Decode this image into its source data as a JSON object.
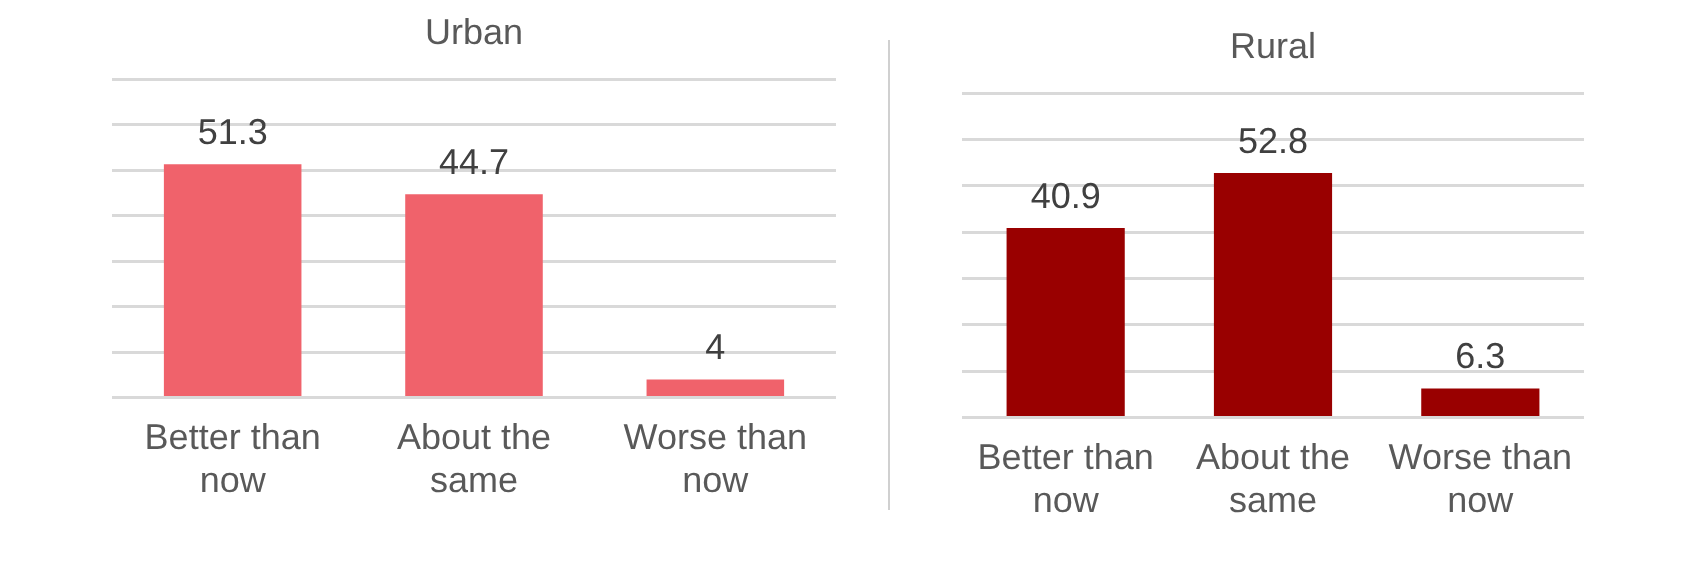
{
  "chart_data": [
    {
      "type": "bar",
      "title": "Urban",
      "categories": [
        "Better than now",
        "About the same",
        "Worse than now"
      ],
      "values": [
        51.3,
        44.7,
        4
      ],
      "color": "#f0626b",
      "ylim": [
        0,
        70
      ],
      "yticks": [
        {
          "value": 0,
          "label": null
        },
        {
          "value": 10,
          "label": null
        },
        {
          "value": 20,
          "label": null
        },
        {
          "value": 30,
          "label": null
        },
        {
          "value": 40,
          "label": null
        },
        {
          "value": 50,
          "label": null
        },
        {
          "value": 60,
          "label": null
        },
        {
          "value": 70,
          "label": null
        }
      ],
      "grid": "y",
      "tick_labels": "x",
      "data_labels": true
    },
    {
      "type": "bar",
      "title": "Rural",
      "categories": [
        "Better than now",
        "About the same",
        "Worse than now"
      ],
      "values": [
        40.9,
        52.8,
        6.3
      ],
      "color": "#990000",
      "ylim": [
        0,
        70
      ],
      "yticks": [
        {
          "value": 0,
          "label": null
        },
        {
          "value": 10,
          "label": null
        },
        {
          "value": 20,
          "label": null
        },
        {
          "value": 30,
          "label": null
        },
        {
          "value": 40,
          "label": null
        },
        {
          "value": 50,
          "label": null
        },
        {
          "value": 60,
          "label": null
        },
        {
          "value": 70,
          "label": null
        }
      ],
      "grid": "y",
      "tick_labels": "x",
      "data_labels": true
    }
  ]
}
